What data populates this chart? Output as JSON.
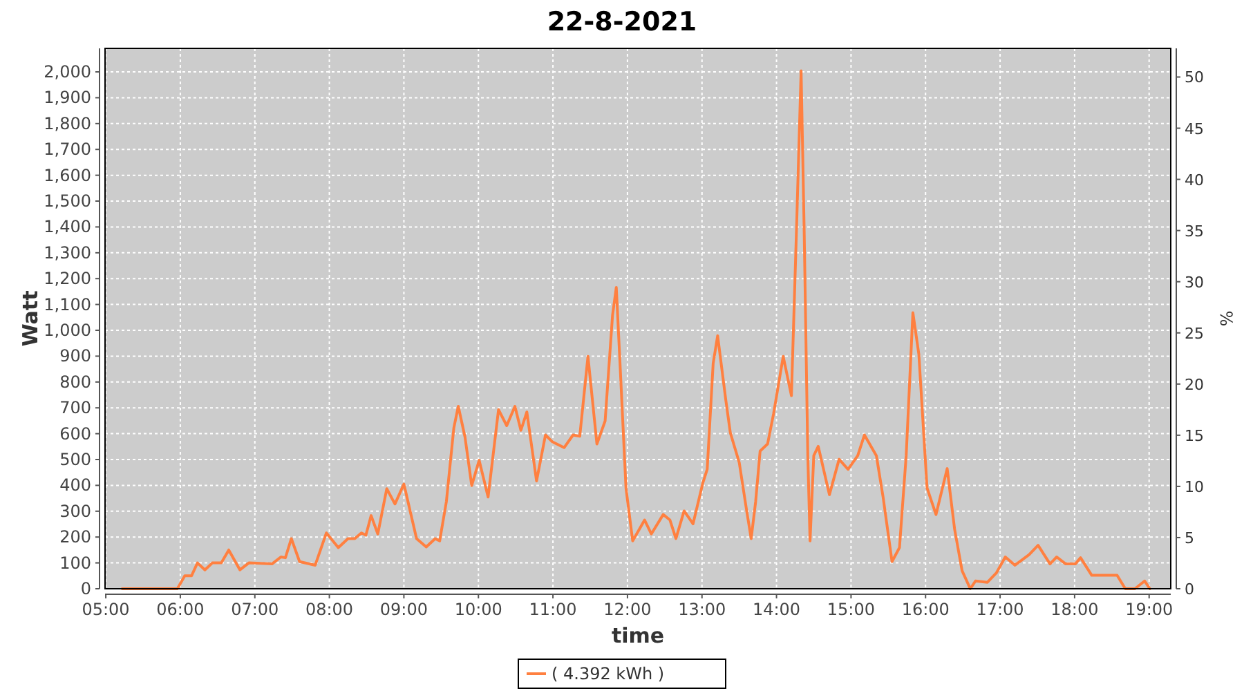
{
  "chart_data": {
    "type": "line",
    "title": "22-8-2021",
    "xlabel": "time",
    "ylabel": "Watt",
    "y2label": "%",
    "xlim": [
      4.99,
      19.29
    ],
    "xticks": [
      {
        "value": 5,
        "label": "05:00"
      },
      {
        "value": 6,
        "label": "06:00"
      },
      {
        "value": 7,
        "label": "07:00"
      },
      {
        "value": 8,
        "label": "08:00"
      },
      {
        "value": 9,
        "label": "09:00"
      },
      {
        "value": 10,
        "label": "10:00"
      },
      {
        "value": 11,
        "label": "11:00"
      },
      {
        "value": 12,
        "label": "12:00"
      },
      {
        "value": 13,
        "label": "13:00"
      },
      {
        "value": 14,
        "label": "14:00"
      },
      {
        "value": 15,
        "label": "15:00"
      },
      {
        "value": 16,
        "label": "16:00"
      },
      {
        "value": 17,
        "label": "17:00"
      },
      {
        "value": 18,
        "label": "18:00"
      },
      {
        "value": 19,
        "label": "19:00"
      }
    ],
    "ylim": [
      0,
      2091
    ],
    "yticks": [
      0,
      100,
      200,
      300,
      400,
      500,
      600,
      700,
      800,
      900,
      {
        "value": 1000,
        "label": "1,000"
      },
      {
        "value": 1100,
        "label": "1,100"
      },
      {
        "value": 1200,
        "label": "1,200"
      },
      {
        "value": 1300,
        "label": "1,300"
      },
      {
        "value": 1400,
        "label": "1,400"
      },
      {
        "value": 1500,
        "label": "1,500"
      },
      {
        "value": 1600,
        "label": "1,600"
      },
      {
        "value": 1700,
        "label": "1,700"
      },
      {
        "value": 1800,
        "label": "1,800"
      },
      {
        "value": 1900,
        "label": "1,900"
      },
      {
        "value": 2000,
        "label": "2,000"
      }
    ],
    "y2lim": [
      0,
      52.8
    ],
    "y2ticks": [
      0,
      5,
      10,
      15,
      20,
      25,
      30,
      35,
      40,
      45,
      50
    ],
    "grid": true,
    "legend": "bottom",
    "marker": "none",
    "line_style": "solid",
    "series": [
      {
        "name": "( 4.392 kWh )",
        "color": "#ff8040",
        "x": [
          5.22,
          5.96,
          6.06,
          6.15,
          6.23,
          6.33,
          6.43,
          6.55,
          6.65,
          6.8,
          6.92,
          7.23,
          7.35,
          7.41,
          7.49,
          7.6,
          7.81,
          7.96,
          8.12,
          8.25,
          8.34,
          8.43,
          8.49,
          8.56,
          8.65,
          8.77,
          8.88,
          9.0,
          9.17,
          9.3,
          9.42,
          9.48,
          9.57,
          9.67,
          9.73,
          9.82,
          9.91,
          10.01,
          10.13,
          10.27,
          10.38,
          10.49,
          10.57,
          10.65,
          10.78,
          10.9,
          10.99,
          11.15,
          11.27,
          11.36,
          11.47,
          11.59,
          11.7,
          11.8,
          11.85,
          11.9,
          11.98,
          12.07,
          12.23,
          12.32,
          12.48,
          12.57,
          12.65,
          12.76,
          12.88,
          13.01,
          13.07,
          13.15,
          13.21,
          13.32,
          13.38,
          13.5,
          13.6,
          13.66,
          13.72,
          13.78,
          13.88,
          13.96,
          14.09,
          14.2,
          14.27,
          14.33,
          14.37,
          14.42,
          14.45,
          14.5,
          14.56,
          14.71,
          14.84,
          14.96,
          15.09,
          15.18,
          15.34,
          15.43,
          15.55,
          15.65,
          15.74,
          15.83,
          15.91,
          16.02,
          16.14,
          16.29,
          16.39,
          16.49,
          16.6,
          16.67,
          16.83,
          16.95,
          17.07,
          17.2,
          17.39,
          17.51,
          17.67,
          17.76,
          17.88,
          18.01,
          18.08,
          18.23,
          18.57,
          18.68,
          18.81,
          18.94,
          19.01
        ],
        "values": [
          0,
          0,
          50,
          50,
          100,
          73,
          100,
          100,
          150,
          73,
          100,
          96,
          123,
          120,
          194,
          105,
          91,
          216,
          159,
          194,
          194,
          216,
          207,
          283,
          212,
          387,
          328,
          405,
          194,
          162,
          194,
          185,
          337,
          622,
          706,
          587,
          399,
          497,
          355,
          693,
          631,
          706,
          613,
          684,
          417,
          595,
          569,
          546,
          595,
          590,
          899,
          560,
          649,
          1059,
          1166,
          872,
          390,
          185,
          266,
          212,
          287,
          266,
          194,
          301,
          251,
          408,
          462,
          872,
          979,
          729,
          604,
          488,
          301,
          194,
          337,
          533,
          560,
          676,
          899,
          747,
          1406,
          2004,
          1406,
          515,
          185,
          515,
          551,
          364,
          501,
          462,
          515,
          595,
          515,
          355,
          105,
          159,
          515,
          1068,
          907,
          390,
          287,
          465,
          230,
          70,
          0,
          30,
          25,
          61,
          123,
          91,
          132,
          168,
          96,
          123,
          96,
          96,
          120,
          52,
          52,
          0,
          0,
          30,
          0
        ]
      }
    ]
  }
}
